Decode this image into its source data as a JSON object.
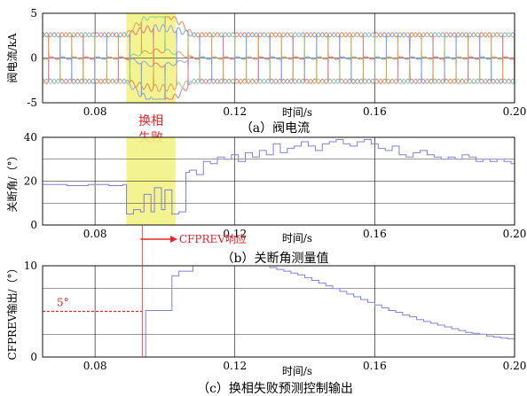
{
  "chart_data": [
    {
      "id": "a",
      "type": "line",
      "caption": "（a）阀电流",
      "xlabel": "时间/s",
      "ylabel": "阀电流/kA",
      "xlim": [
        0.065,
        0.2
      ],
      "ylim": [
        -5,
        5
      ],
      "xticks": [
        0.08,
        0.12,
        0.16,
        0.2
      ],
      "xtick_labels": [
        "0.08",
        "0.12",
        "0.16",
        "0.20"
      ],
      "yticks": [
        -5,
        0,
        5
      ],
      "ytick_labels": [
        "-5",
        "0",
        "5"
      ],
      "grid": true,
      "highlight_span": {
        "x": [
          0.089,
          0.103
        ],
        "label_lines": [
          "换相",
          "失败"
        ],
        "color": "#f2f283"
      },
      "wave": {
        "period": 0.02,
        "conduction_fraction": 0.3333,
        "normal_level_kA": 2.6,
        "series_count": 6,
        "fault_window": [
          0.089,
          0.103
        ],
        "fault_peak_kA": 4.6
      },
      "series": [
        {
          "color": "#e8884b",
          "phase_deg": 0
        },
        {
          "color": "#9aa0ea",
          "phase_deg": 60
        },
        {
          "color": "#8fcf8f",
          "phase_deg": 120
        },
        {
          "color": "#e57c7c",
          "phase_deg": 180
        },
        {
          "color": "#d9a35a",
          "phase_deg": 240
        },
        {
          "color": "#7aa6e6",
          "phase_deg": 300
        }
      ]
    },
    {
      "id": "b",
      "type": "line",
      "caption": "（b）关断角测量值",
      "xlabel": "时间/s",
      "ylabel": "关断角/（°）",
      "xlim": [
        0.065,
        0.2
      ],
      "ylim": [
        0,
        40
      ],
      "xticks": [
        0.08,
        0.12,
        0.16,
        0.2
      ],
      "xtick_labels": [
        "0.08",
        "0.12",
        "0.16",
        "0.20"
      ],
      "yticks": [
        0,
        20,
        40
      ],
      "ytick_labels": [
        "0",
        "20",
        "40"
      ],
      "grid": true,
      "highlight_span": {
        "x": [
          0.089,
          0.103
        ],
        "color": "#f2f283"
      },
      "annotation": {
        "text": "CFPREV响应",
        "arrow_from": 0.093,
        "arrow_to": 0.1,
        "y": -3.5
      },
      "series": [
        {
          "color": "#8080d8",
          "step": true,
          "x": [
            0.065,
            0.072,
            0.078,
            0.084,
            0.088,
            0.089,
            0.091,
            0.093,
            0.094,
            0.096,
            0.097,
            0.099,
            0.1,
            0.102,
            0.104,
            0.106,
            0.107,
            0.109,
            0.111,
            0.113,
            0.115,
            0.117,
            0.119,
            0.121,
            0.123,
            0.125,
            0.127,
            0.129,
            0.131,
            0.133,
            0.135,
            0.137,
            0.139,
            0.141,
            0.143,
            0.145,
            0.147,
            0.149,
            0.151,
            0.153,
            0.155,
            0.157,
            0.159,
            0.161,
            0.163,
            0.165,
            0.167,
            0.169,
            0.171,
            0.173,
            0.175,
            0.177,
            0.179,
            0.181,
            0.183,
            0.185,
            0.187,
            0.189,
            0.191,
            0.193,
            0.195,
            0.197,
            0.199,
            0.2
          ],
          "y": [
            18.5,
            18,
            18.5,
            18,
            18.5,
            5,
            7,
            6,
            14,
            6,
            17,
            7,
            16,
            5,
            6,
            24,
            25,
            23,
            29,
            28,
            31,
            30,
            32,
            29,
            33,
            31,
            34,
            32,
            37,
            33,
            35,
            36,
            38,
            36,
            34,
            37,
            38,
            39,
            37,
            36,
            38,
            39,
            37,
            35,
            34,
            36,
            32,
            31,
            33,
            34,
            32,
            31,
            30,
            31,
            30,
            32,
            31,
            29,
            30,
            29,
            30,
            29,
            28,
            28
          ]
        }
      ]
    },
    {
      "id": "c",
      "type": "line",
      "caption": "（c）换相失败预测控制输出",
      "xlabel": "时间/s",
      "ylabel": "CFPREV输出/（°）",
      "xlim": [
        0.065,
        0.2
      ],
      "ylim": [
        0,
        10
      ],
      "xticks": [
        0.08,
        0.12,
        0.16,
        0.2
      ],
      "xtick_labels": [
        "0.08",
        "0.12",
        "0.16",
        "0.20"
      ],
      "yticks": [
        0,
        10
      ],
      "ytick_labels": [
        "0",
        "10"
      ],
      "grid": true,
      "reference": {
        "y": 5,
        "label": "5°",
        "color": "#e4252a"
      },
      "series": [
        {
          "color": "#8080d8",
          "step": true,
          "x": [
            0.065,
            0.0935,
            0.0945,
            0.102,
            0.104,
            0.108,
            0.13,
            0.132,
            0.134,
            0.136,
            0.138,
            0.14,
            0.142,
            0.144,
            0.146,
            0.148,
            0.15,
            0.152,
            0.154,
            0.156,
            0.158,
            0.16,
            0.162,
            0.164,
            0.166,
            0.168,
            0.17,
            0.172,
            0.174,
            0.176,
            0.178,
            0.18,
            0.182,
            0.184,
            0.186,
            0.188,
            0.19,
            0.192,
            0.194,
            0.196,
            0.198,
            0.2
          ],
          "y": [
            0,
            0,
            5.1,
            8.9,
            9.4,
            10,
            9.8,
            9.6,
            9.4,
            9.2,
            9.0,
            8.7,
            8.4,
            8.1,
            7.8,
            7.5,
            7.2,
            6.9,
            6.6,
            6.3,
            6.0,
            5.7,
            5.4,
            5.1,
            4.9,
            4.6,
            4.4,
            4.1,
            3.9,
            3.7,
            3.5,
            3.3,
            3.1,
            2.9,
            2.7,
            2.6,
            2.5,
            2.3,
            2.2,
            2.1,
            2.0,
            2.0
          ]
        }
      ]
    }
  ]
}
